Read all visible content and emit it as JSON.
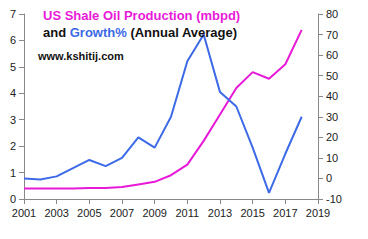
{
  "chart_data": {
    "type": "line",
    "title": "US Shale Oil Production (mbpd) and Growth% (Annual Average)",
    "annotations": [
      "www.kshitij.com"
    ],
    "x": [
      2001,
      2002,
      2003,
      2004,
      2005,
      2006,
      2007,
      2008,
      2009,
      2010,
      2011,
      2012,
      2013,
      2014,
      2015,
      2016,
      2017,
      2018
    ],
    "series": [
      {
        "name": "US Shale Oil Production (mbpd)",
        "color": "#e81ad8",
        "values": [
          0.4,
          0.4,
          0.4,
          0.4,
          0.42,
          0.42,
          0.45,
          0.55,
          0.65,
          0.9,
          1.3,
          2.2,
          3.2,
          4.2,
          4.8,
          4.55,
          5.1,
          6.4
        ]
      },
      {
        "name": "Growth%",
        "color": "#3d6ae6",
        "axis": "y2",
        "values": [
          0,
          -0.5,
          1,
          5,
          9,
          6,
          10,
          20,
          15,
          30,
          57,
          70,
          42,
          35,
          15,
          -7,
          12,
          30
        ]
      }
    ],
    "xlim": [
      2001,
      2019
    ],
    "xticks": [
      2001,
      2003,
      2005,
      2007,
      2009,
      2011,
      2013,
      2015,
      2017,
      2019
    ],
    "ylim": [
      0,
      7
    ],
    "yticks": [
      0,
      1,
      2,
      3,
      4,
      5,
      6,
      7
    ],
    "y2lim": [
      -10,
      80
    ],
    "y2ticks": [
      -10,
      0,
      10,
      20,
      30,
      40,
      50,
      60,
      70,
      80
    ],
    "grid": false
  }
}
